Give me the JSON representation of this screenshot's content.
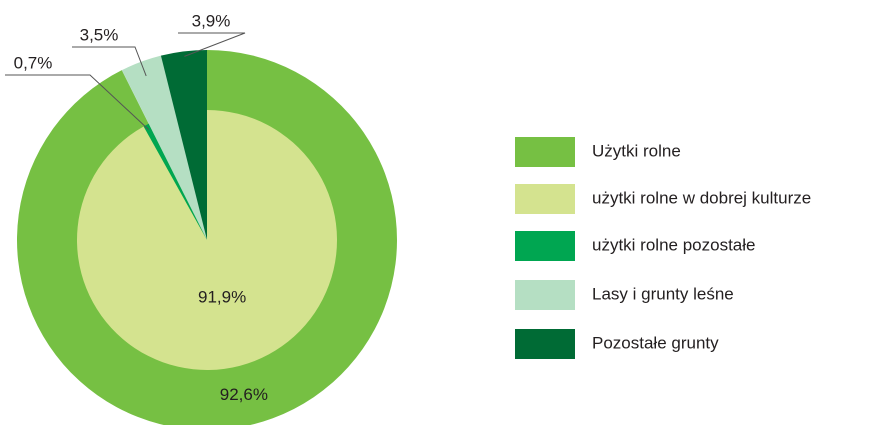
{
  "chart_data": {
    "type": "pie",
    "outer": {
      "categories": [
        "Użytki rolne",
        "Lasy i grunty leśne",
        "Pozostałe grunty"
      ],
      "values": [
        92.6,
        3.5,
        3.9
      ],
      "value_labels": [
        "92,6%",
        "3,5%",
        "3,9%"
      ],
      "colors": [
        "#76c043",
        "#b5dfc3",
        "#006b35"
      ]
    },
    "inner": {
      "categories": [
        "użytki rolne w dobrej kulturze",
        "użytki rolne pozostałe"
      ],
      "values": [
        91.9,
        0.7
      ],
      "value_labels": [
        "91,9%",
        "0,7%"
      ],
      "colors": [
        "#d4e38f",
        "#00a651"
      ]
    }
  }
}
